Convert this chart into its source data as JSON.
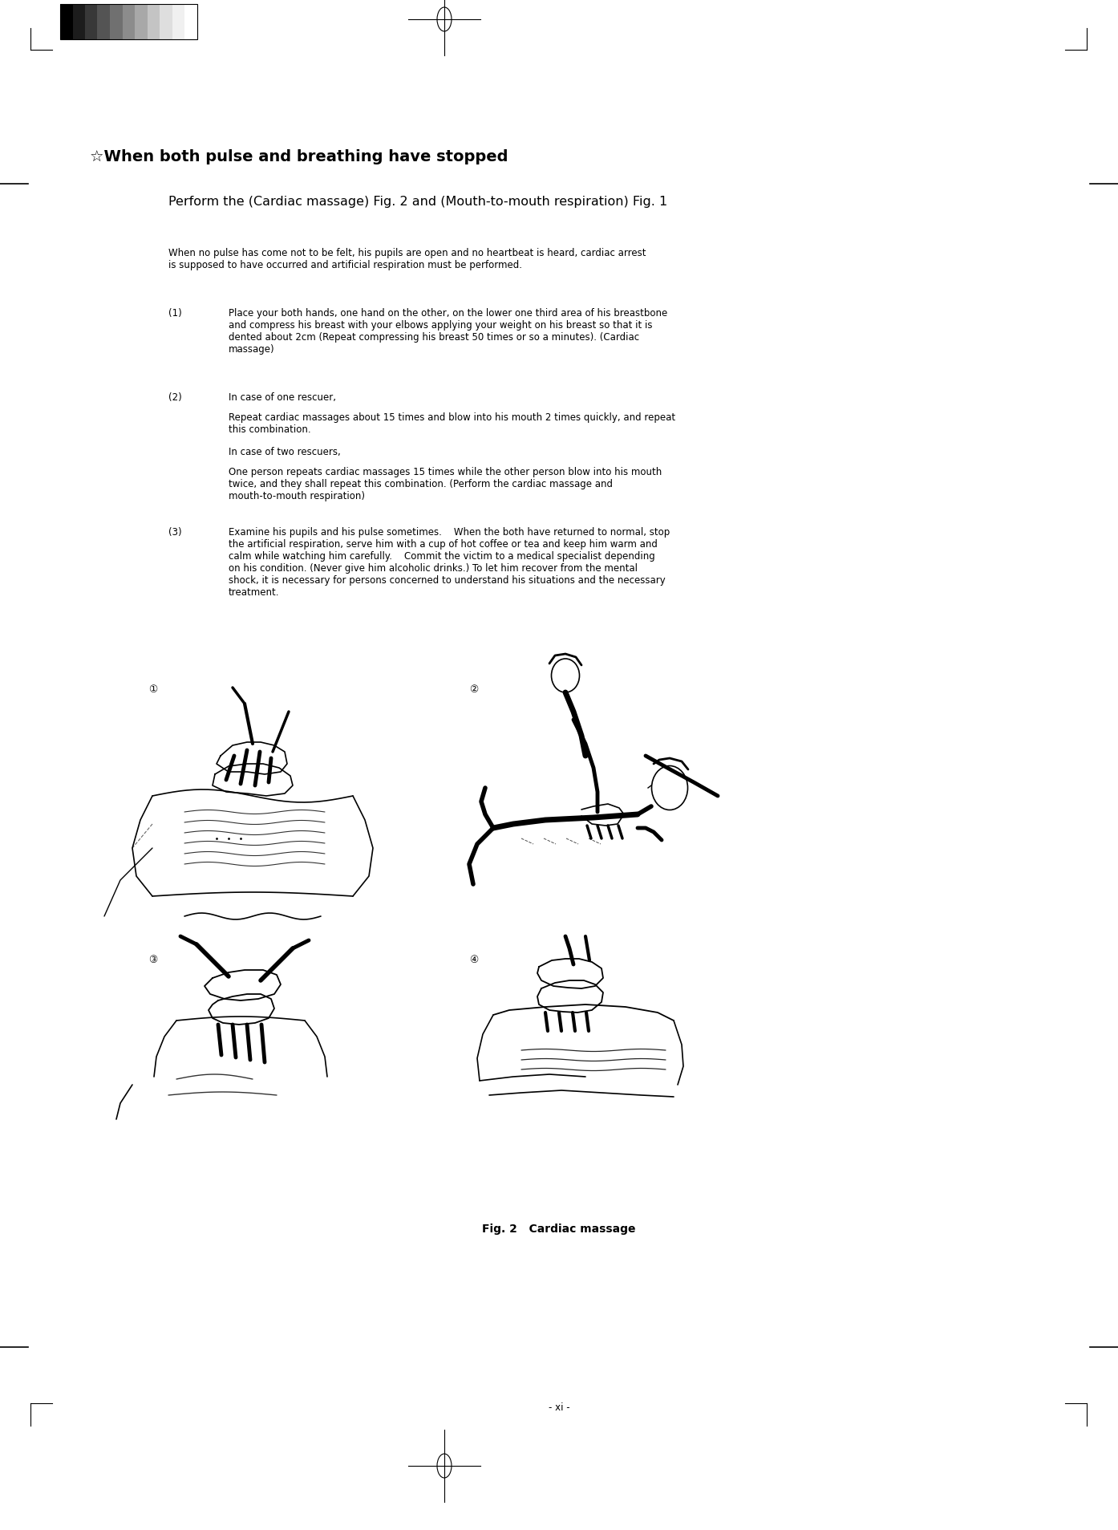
{
  "bg_color": "#ffffff",
  "page_width": 13.94,
  "page_height": 19.08,
  "dpi": 100,
  "title_star": "☆When both pulse and breathing have stopped",
  "subtitle": "Perform the (Cardiac massage) Fig. 2 and (Mouth-to-mouth respiration) Fig. 1",
  "intro_text": "When no pulse has come not to be felt, his pupils are open and no heartbeat is heard, cardiac arrest\nis supposed to have occurred and artificial respiration must be performed.",
  "item1_num": "(1)",
  "item1_text": "Place your both hands, one hand on the other, on the lower one third area of his breastbone\nand compress his breast with your elbows applying your weight on his breast so that it is\ndented about 2cm (Repeat compressing his breast 50 times or so a minutes). (Cardiac\nmassage)",
  "item2_num": "(2)",
  "item2_line1": "In case of one rescuer,",
  "item2_line2": "Repeat cardiac massages about 15 times and blow into his mouth 2 times quickly, and repeat\nthis combination.",
  "item2_line3": "In case of two rescuers,",
  "item2_line4": "One person repeats cardiac massages 15 times while the other person blow into his mouth\ntwice, and they shall repeat this combination. (Perform the cardiac massage and\nmouth-to-mouth respiration)",
  "item3_num": "(3)",
  "item3_text": "Examine his pupils and his pulse sometimes.    When the both have returned to normal, stop\nthe artificial respiration, serve him with a cup of hot coffee or tea and keep him warm and\ncalm while watching him carefully.    Commit the victim to a medical specialist depending\non his condition. (Never give him alcoholic drinks.) To let him recover from the mental\nshock, it is necessary for persons concerned to understand his situations and the necessary\ntreatment.",
  "fig_caption": "Fig. 2   Cardiac massage",
  "page_num": "- xi -",
  "grayscale_colors": [
    "#000000",
    "#1c1c1c",
    "#383838",
    "#545454",
    "#707070",
    "#8c8c8c",
    "#a8a8a8",
    "#c4c4c4",
    "#dedede",
    "#f0f0f0",
    "#ffffff"
  ],
  "label1": "①",
  "label2": "②",
  "label3": "③",
  "label4": "④"
}
